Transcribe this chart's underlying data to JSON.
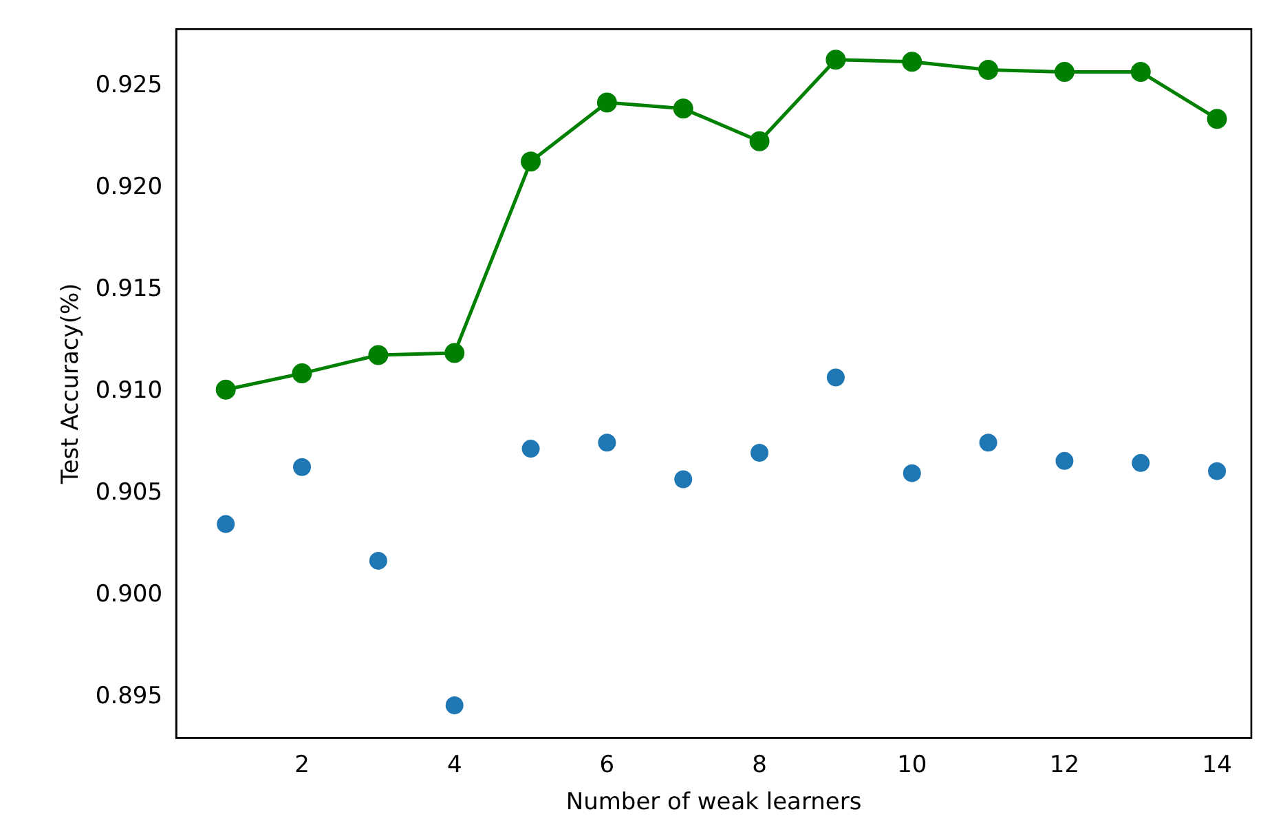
{
  "chart_data": {
    "type": "line",
    "xlabel": "Number of weak learners",
    "ylabel": "Test Accuracy(%)",
    "x": [
      1,
      2,
      3,
      4,
      5,
      6,
      7,
      8,
      9,
      10,
      11,
      12,
      13,
      14
    ],
    "series": [
      {
        "color": "#008000",
        "values": [
          0.9101,
          0.9109,
          0.9118,
          0.9119,
          0.9213,
          0.9242,
          0.9239,
          0.9223,
          0.9263,
          0.9262,
          0.9258,
          0.9257,
          0.9257,
          0.9234
        ]
      },
      {
        "type": "scatter",
        "color": "#1f77b4",
        "values": [
          0.9035,
          0.9063,
          0.9017,
          0.8946,
          0.9072,
          0.9075,
          0.9057,
          0.907,
          0.9107,
          0.906,
          0.9075,
          0.9066,
          0.9065,
          0.9061
        ]
      }
    ],
    "xlim": [
      0.35,
      14.45
    ],
    "xticks": [
      2,
      4,
      6,
      8,
      10,
      12,
      14
    ],
    "ylim": [
      0.893,
      0.9278
    ],
    "yticks": [
      0.895,
      {
        "value": 0.9,
        "label": "0.900"
      },
      0.905,
      {
        "value": 0.91,
        "label": "0.910"
      },
      0.915,
      {
        "value": 0.92,
        "label": "0.920"
      },
      0.925
    ],
    "marker": "circle",
    "grid": false,
    "legend": false
  }
}
